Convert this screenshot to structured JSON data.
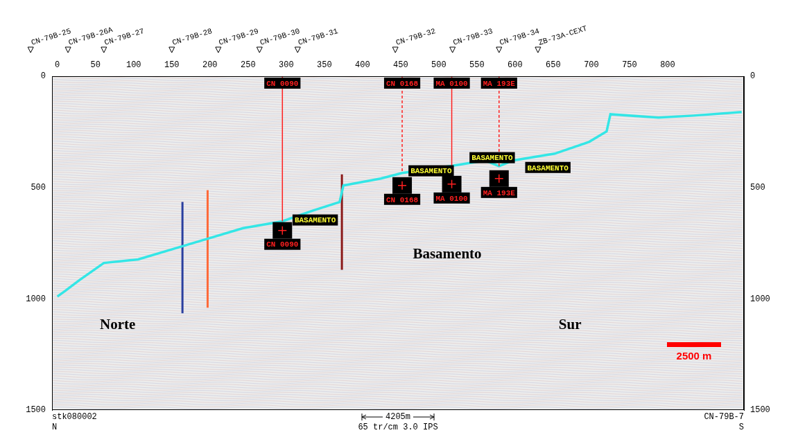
{
  "chart_data": {
    "type": "line",
    "xlim": [
      -7,
      900
    ],
    "xticks": [
      0,
      50,
      100,
      150,
      200,
      250,
      300,
      350,
      400,
      450,
      500,
      550,
      600,
      650,
      700,
      750,
      800
    ],
    "ylim": [
      0,
      1500
    ],
    "yticks": [
      0,
      500,
      1000,
      1500
    ],
    "y2lim": [
      0,
      1500
    ],
    "y2ticks": [
      0,
      500,
      1000,
      1500
    ],
    "grid": false,
    "series": [
      {
        "color": "#33e6e6",
        "x": [
          0,
          11,
          29,
          61,
          106,
          152,
          197,
          243,
          295,
          334,
          370,
          375,
          424,
          452,
          515,
          561,
          579,
          597,
          652,
          697,
          720,
          725,
          788,
          834,
          897
        ],
        "values": [
          990,
          963,
          916,
          839,
          823,
          776,
          730,
          683,
          652,
          605,
          565,
          491,
          460,
          435,
          404,
          379,
          404,
          379,
          348,
          295,
          248,
          171,
          186,
          177,
          161
        ]
      },
      {
        "color": "#2a3f9f",
        "x": [
          164,
          164
        ],
        "values": [
          565,
          1065
        ]
      },
      {
        "color": "#ff6a3a",
        "x": [
          197,
          197
        ],
        "values": [
          512,
          1040
        ]
      },
      {
        "color": "#8b1a1a",
        "x": [
          373,
          373
        ],
        "values": [
          441,
          870
        ]
      }
    ],
    "wells": [
      {
        "label": "CN 0090",
        "x": 295,
        "depth": 652,
        "marker_time": 693,
        "line_style": "solid",
        "color": "#ff2020"
      },
      {
        "label": "CN 0168",
        "x": 452,
        "depth": 435,
        "marker_time": 491,
        "line_style": "dashed",
        "color": "#ff2020"
      },
      {
        "label": "MA 0100",
        "x": 517,
        "depth": 404,
        "marker_time": 485,
        "line_style": "solid",
        "color": "#ff2020"
      },
      {
        "label": "MA 193E",
        "x": 579,
        "depth": 404,
        "marker_time": 460,
        "line_style": "dashed",
        "color": "#ff2020"
      }
    ],
    "horizon_labels": [
      {
        "text": "BASAMENTO",
        "x": 338,
        "time": 646
      },
      {
        "text": "BASAMENTO",
        "x": 490,
        "time": 425
      },
      {
        "text": "BASAMENTO",
        "x": 570,
        "time": 366
      },
      {
        "text": "BASAMENTO",
        "x": 643,
        "time": 410
      }
    ],
    "annotations": [
      {
        "text": "Norte",
        "x": 79,
        "time": 1118
      },
      {
        "text": "Sur",
        "x": 672,
        "time": 1118
      },
      {
        "text": "Basamento",
        "x": 511,
        "time": 801
      }
    ],
    "shotpoints": [
      {
        "label": "CN-79B-25",
        "x": -35
      },
      {
        "label": "CN-79B-26A",
        "x": 14
      },
      {
        "label": "CN-79B-27",
        "x": 61
      },
      {
        "label": "CN-79B-28",
        "x": 150
      },
      {
        "label": "CN-79B-29",
        "x": 211
      },
      {
        "label": "CN-79B-30",
        "x": 265
      },
      {
        "label": "CN-79B-31",
        "x": 315
      },
      {
        "label": "CN-79B-32",
        "x": 443
      },
      {
        "label": "CN-79B-33",
        "x": 518
      },
      {
        "label": "CN-79B-34",
        "x": 579
      },
      {
        "label": "ZB-73A-CEXT",
        "x": 630
      }
    ],
    "scale_bar": {
      "label": "2500 m",
      "color": "#ff0000"
    },
    "footer": {
      "left": [
        "stk080002",
        "N"
      ],
      "center": [
        "4205m",
        "65 tr/cm 3.0 IPS"
      ],
      "right": [
        "CN-79B-7",
        "S"
      ]
    }
  }
}
